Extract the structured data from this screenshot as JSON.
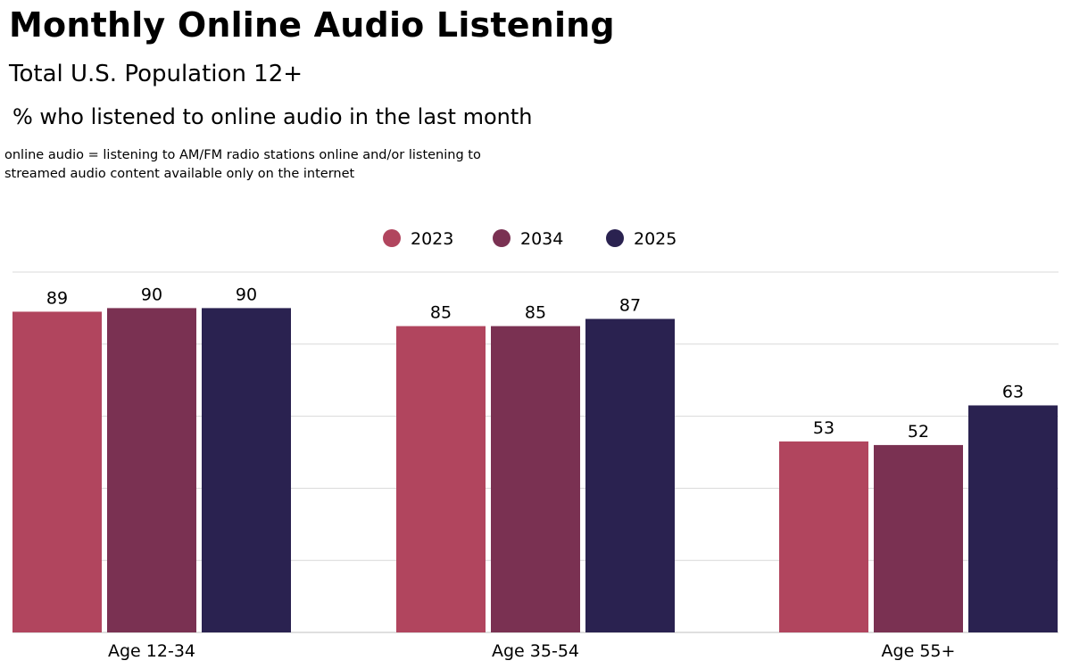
{
  "header": {
    "title": "Monthly Online Audio Listening",
    "subtitle": "Total U.S. Population 12+",
    "measure": "% who listened to online audio in the last month",
    "note": "online audio = listening to AM/FM radio stations online and/or listening to streamed audio content available only on the internet"
  },
  "chart_data": {
    "type": "bar",
    "title": "Monthly Online Audio Listening",
    "subtitle": "Total U.S. Population 12+",
    "categories": [
      "Age 12-34",
      "Age 35-54",
      "Age 55+"
    ],
    "series": [
      {
        "name": "2023",
        "values": [
          89,
          85,
          53
        ],
        "color": "#b1455e"
      },
      {
        "name": "2034",
        "values": [
          90,
          85,
          52
        ],
        "color": "#7a3152"
      },
      {
        "name": "2025",
        "values": [
          90,
          87,
          63
        ],
        "color": "#2a2250"
      }
    ],
    "ylim": [
      0,
      100
    ],
    "grid": true,
    "legend_position": "top-center",
    "data_labels": true
  }
}
